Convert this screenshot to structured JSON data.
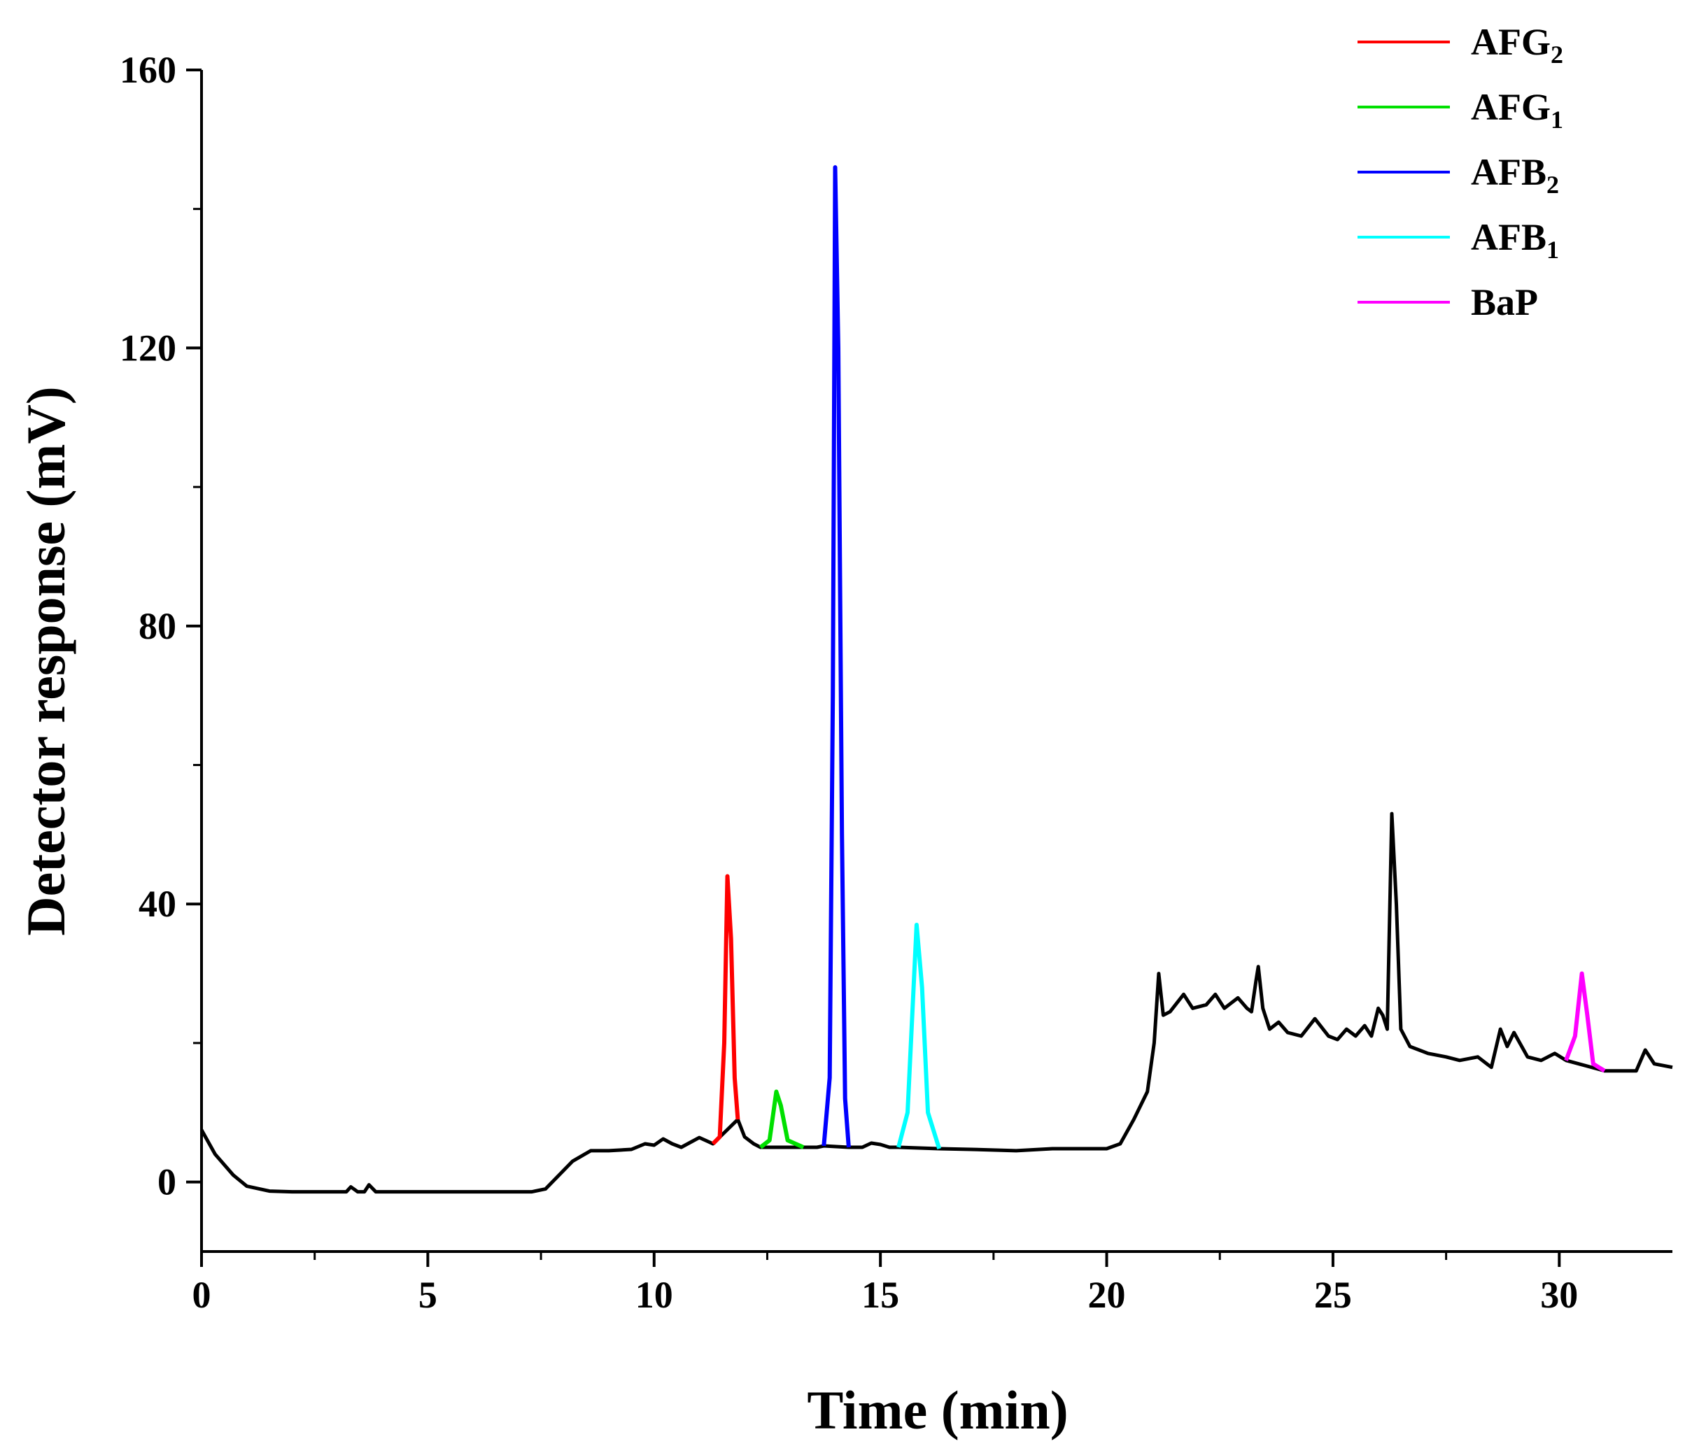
{
  "chart_data": {
    "type": "line",
    "title": "",
    "xlabel": "Time (min)",
    "ylabel": "Detector response (mV)",
    "xlim": [
      0,
      32.5
    ],
    "ylim": [
      -10,
      160
    ],
    "x_ticks": [
      0,
      5,
      10,
      15,
      20,
      25,
      30
    ],
    "y_ticks": [
      0,
      40,
      80,
      120,
      160
    ],
    "grid": false,
    "legend_position": "top-right",
    "baseline_color": "#000000",
    "baseline": [
      [
        0,
        7.5
      ],
      [
        0.3,
        4
      ],
      [
        0.7,
        1
      ],
      [
        1.0,
        -0.6
      ],
      [
        1.5,
        -1.3
      ],
      [
        2.0,
        -1.4
      ],
      [
        3.0,
        -1.4
      ],
      [
        3.2,
        -1.4
      ],
      [
        3.3,
        -0.7
      ],
      [
        3.45,
        -1.4
      ],
      [
        3.6,
        -1.4
      ],
      [
        3.7,
        -0.4
      ],
      [
        3.85,
        -1.4
      ],
      [
        5,
        -1.4
      ],
      [
        6,
        -1.4
      ],
      [
        7.3,
        -1.4
      ],
      [
        7.6,
        -1
      ],
      [
        7.9,
        1
      ],
      [
        8.2,
        3
      ],
      [
        8.6,
        4.5
      ],
      [
        9,
        4.5
      ],
      [
        9.5,
        4.7
      ],
      [
        9.8,
        5.5
      ],
      [
        10.0,
        5.3
      ],
      [
        10.2,
        6.2
      ],
      [
        10.4,
        5.5
      ],
      [
        10.6,
        5.0
      ],
      [
        10.8,
        5.7
      ],
      [
        11.0,
        6.4
      ],
      [
        11.2,
        5.8
      ],
      [
        11.3,
        5.5
      ],
      [
        11.85,
        9
      ],
      [
        12.0,
        6.5
      ],
      [
        12.2,
        5.5
      ],
      [
        12.35,
        5
      ],
      [
        13.3,
        5
      ],
      [
        13.6,
        5
      ],
      [
        13.75,
        5.2
      ],
      [
        14.3,
        5
      ],
      [
        14.6,
        5
      ],
      [
        14.8,
        5.6
      ],
      [
        15.0,
        5.4
      ],
      [
        15.2,
        5.0
      ],
      [
        15.4,
        5.0
      ],
      [
        16.3,
        4.8
      ],
      [
        17,
        4.7
      ],
      [
        18,
        4.5
      ],
      [
        18.8,
        4.8
      ],
      [
        19.5,
        4.8
      ],
      [
        20,
        4.8
      ],
      [
        20.3,
        5.5
      ],
      [
        20.6,
        9
      ],
      [
        20.9,
        13
      ],
      [
        21.05,
        20
      ],
      [
        21.15,
        30
      ],
      [
        21.25,
        24
      ],
      [
        21.4,
        24.5
      ],
      [
        21.7,
        27
      ],
      [
        21.9,
        25
      ],
      [
        22.2,
        25.5
      ],
      [
        22.4,
        27
      ],
      [
        22.6,
        25
      ],
      [
        22.9,
        26.5
      ],
      [
        23.1,
        25
      ],
      [
        23.2,
        24.5
      ],
      [
        23.3,
        29
      ],
      [
        23.35,
        31
      ],
      [
        23.45,
        25
      ],
      [
        23.6,
        22
      ],
      [
        23.8,
        23
      ],
      [
        24.0,
        21.5
      ],
      [
        24.3,
        21
      ],
      [
        24.6,
        23.5
      ],
      [
        24.9,
        21
      ],
      [
        25.1,
        20.5
      ],
      [
        25.3,
        22
      ],
      [
        25.5,
        21
      ],
      [
        25.7,
        22.5
      ],
      [
        25.85,
        21
      ],
      [
        26.0,
        25
      ],
      [
        26.1,
        24
      ],
      [
        26.2,
        22
      ],
      [
        26.3,
        53
      ],
      [
        26.4,
        40
      ],
      [
        26.5,
        22
      ],
      [
        26.7,
        19.5
      ],
      [
        27.1,
        18.5
      ],
      [
        27.5,
        18
      ],
      [
        27.8,
        17.5
      ],
      [
        28.2,
        18
      ],
      [
        28.5,
        16.5
      ],
      [
        28.7,
        22
      ],
      [
        28.85,
        19.5
      ],
      [
        29.0,
        21.5
      ],
      [
        29.3,
        18
      ],
      [
        29.6,
        17.5
      ],
      [
        29.9,
        18.5
      ],
      [
        30.15,
        17.5
      ],
      [
        31.0,
        16
      ],
      [
        31.3,
        16
      ],
      [
        31.7,
        16
      ],
      [
        31.9,
        19
      ],
      [
        32.1,
        17
      ],
      [
        32.5,
        16.5
      ]
    ],
    "series": [
      {
        "name": "AFG2",
        "label": "AFG",
        "sub": "2",
        "color": "#ff0000",
        "points": [
          [
            11.3,
            5.5
          ],
          [
            11.45,
            6.5
          ],
          [
            11.55,
            20
          ],
          [
            11.62,
            44
          ],
          [
            11.7,
            35
          ],
          [
            11.78,
            15
          ],
          [
            11.85,
            9
          ]
        ]
      },
      {
        "name": "AFG1",
        "label": "AFG",
        "sub": "1",
        "color": "#00e000",
        "points": [
          [
            12.35,
            5
          ],
          [
            12.55,
            6
          ],
          [
            12.7,
            13
          ],
          [
            12.8,
            11
          ],
          [
            12.95,
            6
          ],
          [
            13.3,
            5
          ]
        ]
      },
      {
        "name": "AFB2",
        "label": "AFB",
        "sub": "2",
        "color": "#0000ff",
        "points": [
          [
            13.75,
            5.2
          ],
          [
            13.88,
            15
          ],
          [
            13.95,
            70
          ],
          [
            14.0,
            146
          ],
          [
            14.07,
            120
          ],
          [
            14.15,
            50
          ],
          [
            14.22,
            12
          ],
          [
            14.3,
            5
          ]
        ]
      },
      {
        "name": "AFB1",
        "label": "AFB",
        "sub": "1",
        "color": "#00ffff",
        "points": [
          [
            15.4,
            5.0
          ],
          [
            15.6,
            10
          ],
          [
            15.8,
            37
          ],
          [
            15.92,
            28
          ],
          [
            16.05,
            10
          ],
          [
            16.3,
            4.8
          ]
        ]
      },
      {
        "name": "BaP",
        "label": "BaP",
        "sub": "",
        "color": "#ff00ff",
        "points": [
          [
            30.15,
            17.5
          ],
          [
            30.35,
            21
          ],
          [
            30.5,
            30
          ],
          [
            30.62,
            24
          ],
          [
            30.75,
            17
          ],
          [
            31.0,
            16
          ]
        ]
      }
    ]
  }
}
